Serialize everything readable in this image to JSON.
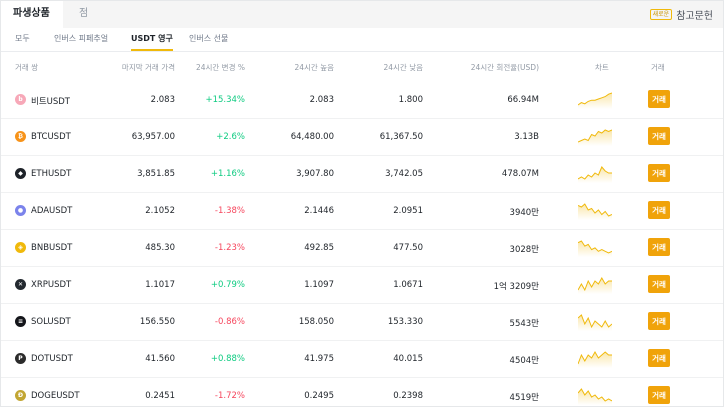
{
  "top_tabs": [
    {
      "label": "파생상품",
      "active": true
    },
    {
      "label": "점",
      "active": false
    }
  ],
  "reference": {
    "badge": "새로운",
    "label": "참고문헌"
  },
  "sub_tabs": [
    {
      "label": "모두",
      "active": false
    },
    {
      "label": "인버스 피페추얼",
      "active": false
    },
    {
      "label": "USDT 영구",
      "active": true
    },
    {
      "label": "인버스 선물",
      "active": false
    }
  ],
  "columns": {
    "pair": "거래 쌍",
    "last_price": "마지막 거래 가격",
    "change": "24시간 변경 %",
    "high": "24시간 높음",
    "low": "24시간 낮음",
    "turnover": "24시간 회전율(USD)",
    "chart": "차트",
    "trade": "거래"
  },
  "rows": [
    {
      "pair": "비트USDT",
      "price": "2.083",
      "change": "+15.34%",
      "dir": "up",
      "high": "2.083",
      "low": "1.800",
      "turnover": "66.94M",
      "coin_color": "#f7a8b8",
      "coin_text": "b",
      "trend": [
        8,
        10,
        9,
        11,
        12,
        12,
        13,
        14,
        15,
        17,
        18
      ]
    },
    {
      "pair": "BTCUSDT",
      "price": "63,957.00",
      "change": "+2.6%",
      "dir": "up",
      "high": "64,480.00",
      "low": "61,367.50",
      "turnover": "3.13B",
      "coin_color": "#f7931a",
      "coin_text": "₿",
      "trend": [
        7,
        8,
        9,
        8,
        12,
        11,
        14,
        13,
        15,
        14,
        15
      ]
    },
    {
      "pair": "ETHUSDT",
      "price": "3,851.85",
      "change": "+1.16%",
      "dir": "up",
      "high": "3,907.80",
      "low": "3,742.05",
      "turnover": "478.07M",
      "coin_color": "#1e2329",
      "coin_text": "◆",
      "trend": [
        9,
        10,
        9,
        11,
        10,
        12,
        11,
        15,
        13,
        12,
        12
      ]
    },
    {
      "pair": "ADAUSDT",
      "price": "2.1052",
      "change": "-1.38%",
      "dir": "down",
      "high": "2.1446",
      "low": "2.0951",
      "turnover": "3940만",
      "coin_color": "#7b83eb",
      "coin_text": "●",
      "trend": [
        14,
        13,
        15,
        11,
        12,
        9,
        11,
        8,
        10,
        7,
        8
      ]
    },
    {
      "pair": "BNBUSDT",
      "price": "485.30",
      "change": "-1.23%",
      "dir": "down",
      "high": "492.85",
      "low": "477.50",
      "turnover": "3028만",
      "coin_color": "#f0b90b",
      "coin_text": "◈",
      "trend": [
        14,
        15,
        12,
        13,
        10,
        11,
        9,
        10,
        9,
        8,
        9
      ]
    },
    {
      "pair": "XRPUSDT",
      "price": "1.1017",
      "change": "+0.79%",
      "dir": "up",
      "high": "1.1097",
      "low": "1.0671",
      "turnover": "1억 3209만",
      "coin_color": "#23292f",
      "coin_text": "✕",
      "trend": [
        9,
        11,
        9,
        12,
        10,
        12,
        11,
        13,
        11,
        12,
        12
      ]
    },
    {
      "pair": "SOLUSDT",
      "price": "156.550",
      "change": "-0.86%",
      "dir": "down",
      "high": "158.050",
      "low": "153.330",
      "turnover": "5543만",
      "coin_color": "#14151a",
      "coin_text": "≡",
      "trend": [
        12,
        13,
        10,
        12,
        9,
        11,
        10,
        9,
        11,
        9,
        10
      ]
    },
    {
      "pair": "DOTUSDT",
      "price": "41.560",
      "change": "+0.88%",
      "dir": "up",
      "high": "41.975",
      "low": "40.015",
      "turnover": "4504만",
      "coin_color": "#2b2b2b",
      "coin_text": "P",
      "trend": [
        9,
        12,
        10,
        12,
        11,
        13,
        11,
        12,
        13,
        12,
        12
      ]
    },
    {
      "pair": "DOGEUSDT",
      "price": "0.2451",
      "change": "-1.72%",
      "dir": "down",
      "high": "0.2495",
      "low": "0.2398",
      "turnover": "4519만",
      "coin_color": "#c2a633",
      "coin_text": "Ð",
      "trend": [
        12,
        14,
        11,
        13,
        10,
        11,
        9,
        10,
        8,
        9,
        8
      ]
    }
  ],
  "trade_label": "거래",
  "colors": {
    "accent": "#f0b90b",
    "trade_button": "#f0a30a",
    "up": "#0ecb81",
    "down": "#f6465d",
    "sparkline": "#f0b90b"
  }
}
